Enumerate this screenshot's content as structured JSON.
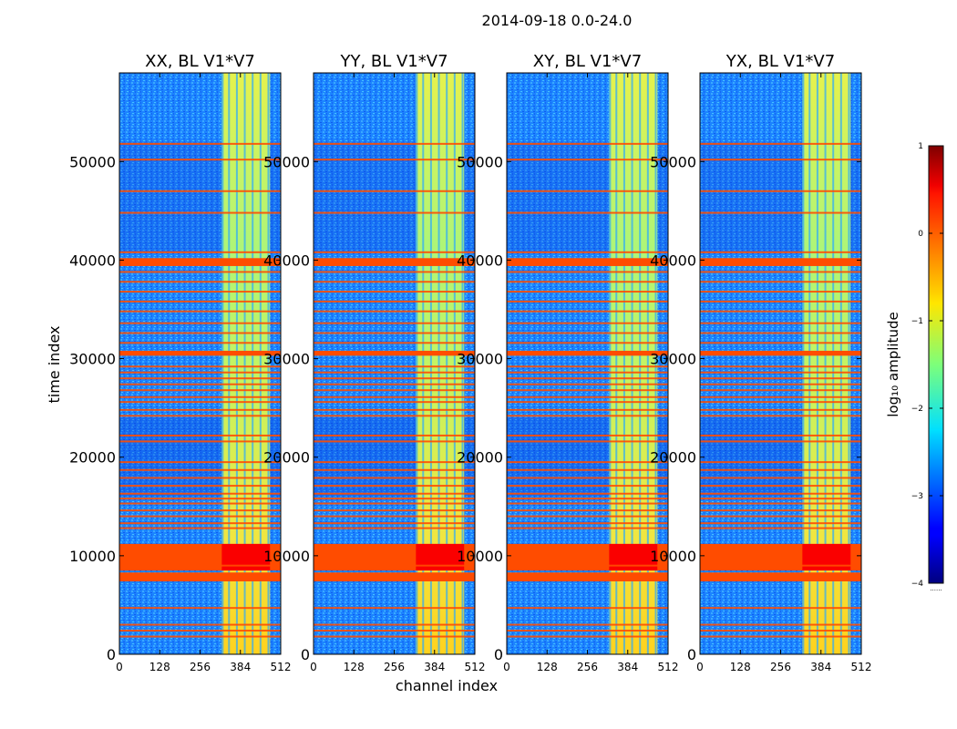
{
  "chart_data": {
    "type": "heatmap",
    "suptitle": "2014-09-18 0.0-24.0",
    "xlabel": "channel index",
    "ylabel": "time index",
    "xlim": [
      0,
      512
    ],
    "ylim": [
      0,
      59000
    ],
    "xticks": [
      0,
      128,
      256,
      384,
      512
    ],
    "yticks": [
      0,
      10000,
      20000,
      30000,
      40000,
      50000
    ],
    "colormap": "jet",
    "colorbar": {
      "label": "log₁₀ amplitude",
      "range": [
        -4,
        1
      ],
      "ticks": [
        1,
        0,
        -1,
        -2,
        -3,
        -4
      ],
      "tick_labels": [
        "1",
        "0",
        "−1",
        "−2",
        "−3",
        "−4"
      ],
      "extra_label": "......"
    },
    "panels": [
      {
        "title": "XX, BL V1*V7"
      },
      {
        "title": "YY, BL V1*V7"
      },
      {
        "title": "XY, BL V1*V7"
      },
      {
        "title": "YX, BL V1*V7"
      }
    ],
    "features": {
      "background_log_amplitude": -2.7,
      "band_channel_range": [
        325,
        478
      ],
      "band_log_amplitude": -1.3,
      "flagged_rows_time_index": [
        1800,
        2400,
        3000,
        4700,
        9000,
        12800,
        13300,
        14000,
        14600,
        15300,
        15800,
        16300,
        17100,
        17900,
        18700,
        19500,
        21600,
        22200,
        24200,
        24800,
        25600,
        26100,
        26800,
        27400,
        28000,
        28600,
        29200,
        31600,
        32600,
        33600,
        34800,
        35800,
        36800,
        37800,
        38800,
        40800,
        44800,
        47000,
        50200,
        51800
      ],
      "flagged_blocks_time_index": [
        [
          7400,
          8300
        ],
        [
          30300,
          30800
        ],
        [
          39400,
          40200
        ]
      ],
      "strong_rfi_block_time_index": [
        8500,
        11200
      ],
      "flagged_log_amplitude": 0.0,
      "rfi_log_amplitude": 0.4
    }
  }
}
